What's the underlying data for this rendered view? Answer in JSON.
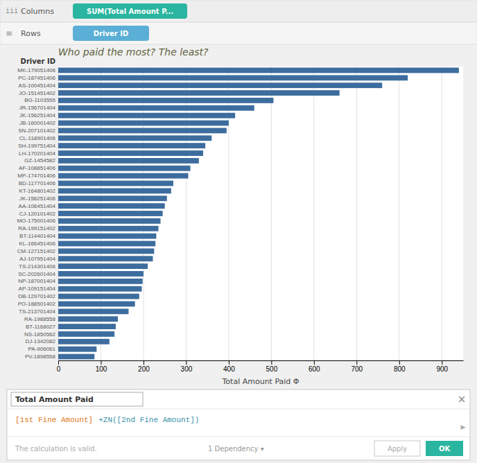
{
  "chart_data": {
    "type": "bar",
    "orientation": "horizontal",
    "title": "Who paid the most? The least?",
    "xlabel": "Total Amount Paid Φ",
    "ylabel": "Driver ID",
    "categories": [
      "MK-179051406",
      "PC-187451406",
      "AS-100451404",
      "JO-151451402",
      "BG-1103555",
      "JR-156701404",
      "JK-156251404",
      "JB-160001402",
      "SN-207101402",
      "CL-118901406",
      "SH-199751404",
      "LH-170201404",
      "GZ-1454582",
      "AF-108851406",
      "MP-174701406",
      "BD-117701406",
      "KT-164801402",
      "JK-156251406",
      "AA-106451404",
      "CJ-120101402",
      "MO-175001406",
      "RA-199151402",
      "BT-114401404",
      "KL-166451406",
      "CM-127151402",
      "AJ-107951404",
      "TS-214301406",
      "SC-202601404",
      "NP-187001404",
      "AP-109151404",
      "DB-129701402",
      "PO-188501402",
      "TS-213701404",
      "RA-1988558",
      "BT-1168027",
      "NS-1850562",
      "DJ-1342082",
      "PA-906061",
      "PV-1898558"
    ],
    "values": [
      940,
      820,
      760,
      660,
      505,
      460,
      415,
      400,
      395,
      360,
      345,
      340,
      330,
      310,
      305,
      270,
      265,
      255,
      250,
      245,
      240,
      235,
      230,
      228,
      225,
      222,
      210,
      200,
      198,
      196,
      190,
      180,
      165,
      140,
      135,
      132,
      120,
      90,
      85
    ],
    "color": "#3d6d9e",
    "xlim": [
      0,
      950
    ],
    "xticks": [
      0,
      100,
      200,
      300,
      400,
      500,
      600,
      700,
      800,
      900
    ],
    "grid": true,
    "annotations": [
      "iii",
      "Columns",
      "SUM(Total Amount P...",
      "≡",
      "Rows",
      "Driver ID",
      "Total Amount Paid",
      "×",
      "[1st Fine Amount]",
      "+ZN([2nd Fine Amount])",
      "▶",
      "The calculation is valid.",
      "1 Dependency ▾",
      "Apply",
      "OK"
    ]
  }
}
